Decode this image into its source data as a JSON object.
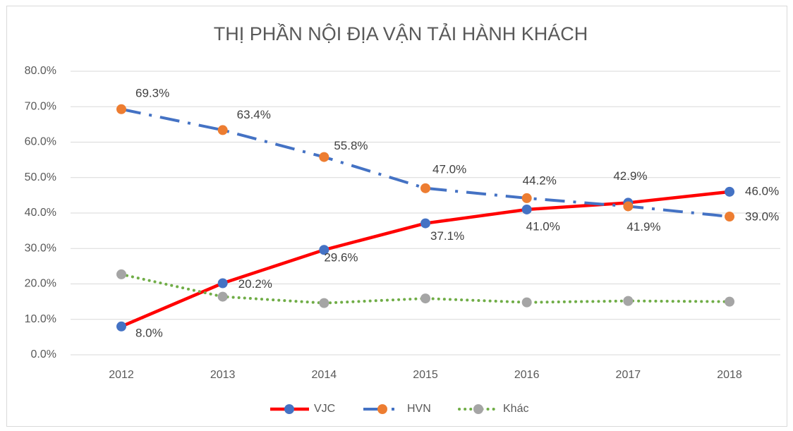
{
  "chart_data": {
    "type": "line",
    "title": "THỊ PHẦN NỘI ĐỊA VẬN TẢI HÀNH KHÁCH",
    "categories": [
      "2012",
      "2013",
      "2014",
      "2015",
      "2016",
      "2017",
      "2018"
    ],
    "series": [
      {
        "name": "VJC",
        "color": "#ff0000",
        "marker_color": "#4472c4",
        "line_style": "solid",
        "values": [
          8.0,
          20.2,
          29.6,
          37.1,
          41.0,
          42.9,
          46.0
        ],
        "value_labels": [
          "8.0%",
          "20.2%",
          "29.6%",
          "37.1%",
          "41.0%",
          "42.9%",
          "46.0%"
        ]
      },
      {
        "name": "HVN",
        "color": "#4472c4",
        "marker_color": "#ed7d31",
        "line_style": "dash-dot",
        "values": [
          69.3,
          63.4,
          55.8,
          47.0,
          44.2,
          41.9,
          39.0
        ],
        "value_labels": [
          "69.3%",
          "63.4%",
          "55.8%",
          "47.0%",
          "44.2%",
          "41.9%",
          "39.0%"
        ]
      },
      {
        "name": "Khác",
        "color": "#70ad47",
        "marker_color": "#a5a5a5",
        "line_style": "dotted",
        "values": [
          22.7,
          16.4,
          14.6,
          15.9,
          14.8,
          15.2,
          15.0
        ]
      }
    ],
    "ylim": [
      0,
      80
    ],
    "yticks": [
      {
        "value": 0,
        "label": "0.0%"
      },
      {
        "value": 10,
        "label": "10.0%"
      },
      {
        "value": 20,
        "label": "20.0%"
      },
      {
        "value": 30,
        "label": "30.0%"
      },
      {
        "value": 40,
        "label": "40.0%"
      },
      {
        "value": 50,
        "label": "50.0%"
      },
      {
        "value": 60,
        "label": "60.0%"
      },
      {
        "value": 70,
        "label": "70.0%"
      },
      {
        "value": 80,
        "label": "80.0%"
      }
    ],
    "grid": true,
    "legend": "bottom"
  }
}
